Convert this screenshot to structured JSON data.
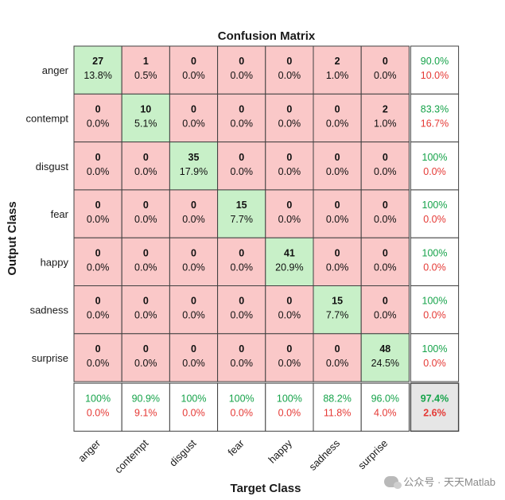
{
  "chart_data": {
    "type": "heatmap",
    "title": "Confusion Matrix",
    "xlabel": "Target Class",
    "ylabel": "Output Class",
    "classes": [
      "anger",
      "contempt",
      "disgust",
      "fear",
      "happy",
      "sadness",
      "surprise"
    ],
    "counts": [
      [
        27,
        1,
        0,
        0,
        0,
        2,
        0
      ],
      [
        0,
        10,
        0,
        0,
        0,
        0,
        2
      ],
      [
        0,
        0,
        35,
        0,
        0,
        0,
        0
      ],
      [
        0,
        0,
        0,
        15,
        0,
        0,
        0
      ],
      [
        0,
        0,
        0,
        0,
        41,
        0,
        0
      ],
      [
        0,
        0,
        0,
        0,
        0,
        15,
        0
      ],
      [
        0,
        0,
        0,
        0,
        0,
        0,
        48
      ]
    ],
    "percents": [
      [
        "13.8%",
        "0.5%",
        "0.0%",
        "0.0%",
        "0.0%",
        "1.0%",
        "0.0%"
      ],
      [
        "0.0%",
        "5.1%",
        "0.0%",
        "0.0%",
        "0.0%",
        "0.0%",
        "1.0%"
      ],
      [
        "0.0%",
        "0.0%",
        "17.9%",
        "0.0%",
        "0.0%",
        "0.0%",
        "0.0%"
      ],
      [
        "0.0%",
        "0.0%",
        "0.0%",
        "7.7%",
        "0.0%",
        "0.0%",
        "0.0%"
      ],
      [
        "0.0%",
        "0.0%",
        "0.0%",
        "0.0%",
        "20.9%",
        "0.0%",
        "0.0%"
      ],
      [
        "0.0%",
        "0.0%",
        "0.0%",
        "0.0%",
        "0.0%",
        "7.7%",
        "0.0%"
      ],
      [
        "0.0%",
        "0.0%",
        "0.0%",
        "0.0%",
        "0.0%",
        "0.0%",
        "24.5%"
      ]
    ],
    "row_summary": [
      [
        "90.0%",
        "10.0%"
      ],
      [
        "83.3%",
        "16.7%"
      ],
      [
        "100%",
        "0.0%"
      ],
      [
        "100%",
        "0.0%"
      ],
      [
        "100%",
        "0.0%"
      ],
      [
        "100%",
        "0.0%"
      ],
      [
        "100%",
        "0.0%"
      ]
    ],
    "col_summary": [
      [
        "100%",
        "0.0%"
      ],
      [
        "90.9%",
        "9.1%"
      ],
      [
        "100%",
        "0.0%"
      ],
      [
        "100%",
        "0.0%"
      ],
      [
        "100%",
        "0.0%"
      ],
      [
        "88.2%",
        "11.8%"
      ],
      [
        "96.0%",
        "4.0%"
      ]
    ],
    "overall": [
      "97.4%",
      "2.6%"
    ],
    "colors": {
      "correct": "#c8f0c8",
      "incorrect": "#fac8c8",
      "summary": "#ffffff",
      "overall": "#e6e6e6",
      "good_text": "#16a34a",
      "bad_text": "#e53935"
    }
  },
  "watermark": {
    "text": "公众号 · 天天Matlab",
    "icon": "wechat-icon"
  }
}
